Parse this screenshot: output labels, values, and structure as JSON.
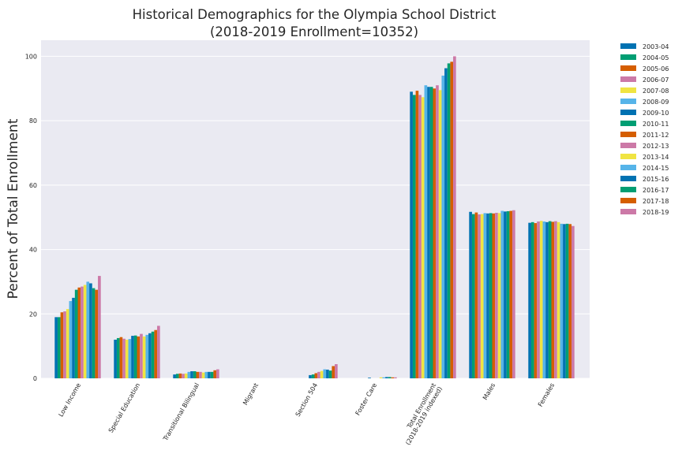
{
  "chart_data": {
    "type": "bar",
    "title_line1": "Historical Demographics for the Olympia School District",
    "title_line2": "(2018-2019 Enrollment=10352)",
    "xlabel": "",
    "ylabel": "Percent of Total Enrollment",
    "ylim": [
      0,
      105
    ],
    "yticks": [
      0,
      20,
      40,
      60,
      80,
      100
    ],
    "grid": true,
    "legend_placement": "outside-top-right",
    "categories": [
      [
        "Low Income"
      ],
      [
        "Special Education"
      ],
      [
        "Transitional Bilingual"
      ],
      [
        "Migrant"
      ],
      [
        "Section 504"
      ],
      [
        "Foster Care"
      ],
      [
        "Total Enrollment",
        "(2018-2019 indexed)"
      ],
      [
        "Males"
      ],
      [
        "Females"
      ]
    ],
    "series": [
      {
        "name": "2003-04",
        "color": "#0072b2",
        "values": [
          19.0,
          12.0,
          1.2,
          0,
          0,
          0,
          89.0,
          51.7,
          48.3
        ]
      },
      {
        "name": "2004-05",
        "color": "#009e73",
        "values": [
          19.0,
          12.5,
          1.4,
          0,
          0,
          0,
          88.0,
          51.0,
          48.5
        ]
      },
      {
        "name": "2005-06",
        "color": "#d55e00",
        "values": [
          20.5,
          12.8,
          1.5,
          0,
          0,
          0,
          89.3,
          51.5,
          48.2
        ]
      },
      {
        "name": "2006-07",
        "color": "#cc79a7",
        "values": [
          20.8,
          12.3,
          1.4,
          0,
          0,
          0,
          88.0,
          50.9,
          48.7
        ]
      },
      {
        "name": "2007-08",
        "color": "#f0e442",
        "values": [
          21.5,
          12.0,
          1.5,
          0,
          0,
          0,
          87.3,
          51.0,
          48.9
        ]
      },
      {
        "name": "2008-09",
        "color": "#56b4e9",
        "values": [
          24.0,
          12.2,
          2.0,
          0,
          0,
          0,
          91.0,
          51.3,
          48.7
        ]
      },
      {
        "name": "2009-10",
        "color": "#0072b2",
        "values": [
          25.0,
          13.2,
          2.2,
          0,
          1.0,
          0.2,
          90.5,
          51.2,
          48.5
        ]
      },
      {
        "name": "2010-11",
        "color": "#009e73",
        "values": [
          27.5,
          13.3,
          2.2,
          0,
          1.2,
          0,
          90.5,
          51.3,
          48.8
        ]
      },
      {
        "name": "2011-12",
        "color": "#d55e00",
        "values": [
          28.2,
          13.0,
          2.0,
          0,
          1.6,
          0,
          90.0,
          51.2,
          48.6
        ]
      },
      {
        "name": "2012-13",
        "color": "#cc79a7",
        "values": [
          28.5,
          13.8,
          2.0,
          0,
          2.0,
          0,
          91.0,
          51.4,
          48.8
        ]
      },
      {
        "name": "2013-14",
        "color": "#f0e442",
        "values": [
          29.0,
          13.0,
          1.8,
          0,
          2.3,
          0.3,
          89.5,
          51.3,
          48.5
        ]
      },
      {
        "name": "2014-15",
        "color": "#56b4e9",
        "values": [
          30.0,
          13.5,
          2.0,
          0,
          2.8,
          0.3,
          94.0,
          52.0,
          48.0
        ]
      },
      {
        "name": "2015-16",
        "color": "#0072b2",
        "values": [
          29.5,
          14.0,
          2.0,
          0,
          2.7,
          0.4,
          96.3,
          51.8,
          47.9
        ]
      },
      {
        "name": "2016-17",
        "color": "#009e73",
        "values": [
          28.0,
          14.5,
          2.0,
          0,
          2.4,
          0.4,
          97.8,
          51.9,
          48.0
        ]
      },
      {
        "name": "2017-18",
        "color": "#d55e00",
        "values": [
          27.5,
          15.0,
          2.5,
          0,
          3.8,
          0.3,
          98.3,
          52.0,
          47.9
        ]
      },
      {
        "name": "2018-19",
        "color": "#cc79a7",
        "values": [
          31.8,
          16.3,
          2.8,
          0,
          4.4,
          0.3,
          100.0,
          52.2,
          47.3
        ]
      }
    ]
  }
}
